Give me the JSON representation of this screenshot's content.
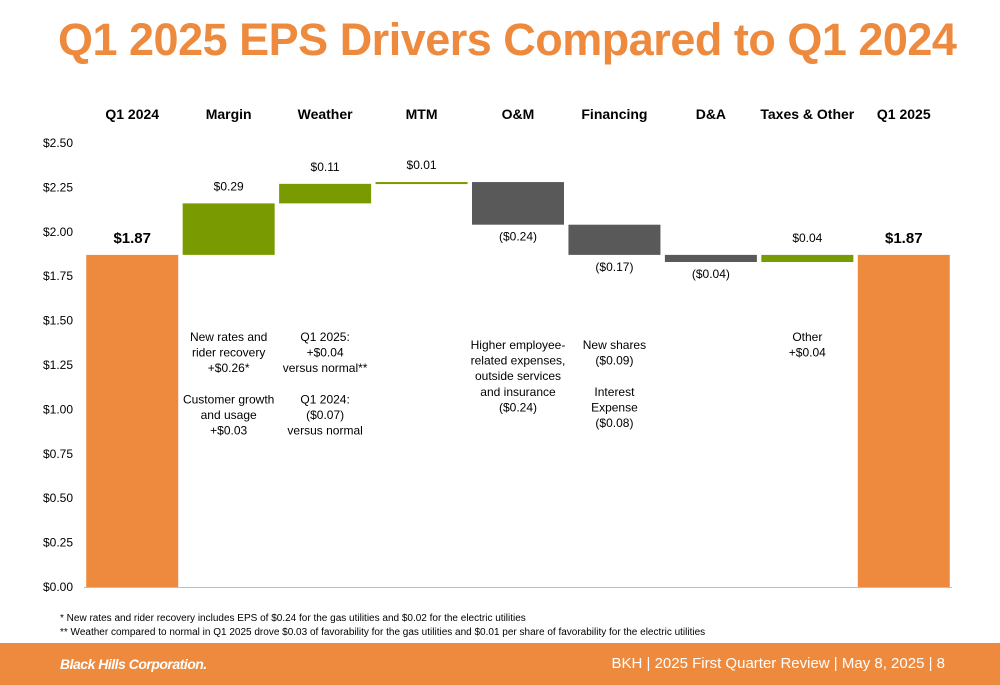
{
  "title": "Q1 2025 EPS Drivers Compared to Q1 2024",
  "chart_data": {
    "type": "bar",
    "subtype": "waterfall",
    "ylim": [
      0,
      2.5
    ],
    "yticks": [
      "$0.00",
      "$0.25",
      "$0.50",
      "$0.75",
      "$1.00",
      "$1.25",
      "$1.50",
      "$1.75",
      "$2.00",
      "$2.25",
      "$2.50"
    ],
    "ytick_values": [
      0,
      0.25,
      0.5,
      0.75,
      1.0,
      1.25,
      1.5,
      1.75,
      2.0,
      2.25,
      2.5
    ],
    "colors": {
      "total": "#ED8A3E",
      "increase": "#7A9A01",
      "decrease": "#595959"
    },
    "categories": [
      "Q1 2024",
      "Margin",
      "Weather",
      "MTM",
      "O&M",
      "Financing",
      "D&A",
      "Taxes & Other",
      "Q1 2025"
    ],
    "steps": [
      {
        "kind": "total",
        "value": 1.87,
        "label": "$1.87"
      },
      {
        "kind": "increase",
        "value": 0.29,
        "label": "$0.29",
        "note": [
          "New rates and",
          "rider recovery",
          "+$0.26*",
          "",
          "Customer growth",
          "and usage",
          "+$0.03"
        ]
      },
      {
        "kind": "increase",
        "value": 0.11,
        "label": "$0.11",
        "note": [
          "Q1 2025:",
          "+$0.04",
          "versus normal**",
          "",
          "Q1 2024:",
          "($0.07)",
          "versus normal"
        ]
      },
      {
        "kind": "increase",
        "value": 0.01,
        "label": "$0.01",
        "note": []
      },
      {
        "kind": "decrease",
        "value": -0.24,
        "label": "($0.24)",
        "note": [
          "Higher employee-",
          "related expenses,",
          "outside services",
          "and insurance",
          "($0.24)"
        ]
      },
      {
        "kind": "decrease",
        "value": -0.17,
        "label": "($0.17)",
        "note": [
          "New shares",
          "($0.09)",
          "",
          "Interest",
          "Expense",
          "($0.08)"
        ]
      },
      {
        "kind": "decrease",
        "value": -0.04,
        "label": "($0.04)",
        "note": []
      },
      {
        "kind": "increase",
        "value": 0.04,
        "label": "$0.04",
        "note": [
          "Other",
          "+$0.04"
        ]
      },
      {
        "kind": "total",
        "value": 1.87,
        "label": "$1.87"
      }
    ]
  },
  "footnotes": [
    "*  New rates and rider recovery includes EPS of $0.24 for the gas utilities and $0.02 for the electric utilities",
    "** Weather compared to normal in Q1 2025 drove $0.03 of favorability for the gas utilities and $0.01 per share of favorability for the electric utilities"
  ],
  "footer": {
    "logo_text": "Black Hills Corporation.",
    "right_text": "BKH  |  2025 First Quarter Review  |  May 8, 2025  |  8"
  }
}
